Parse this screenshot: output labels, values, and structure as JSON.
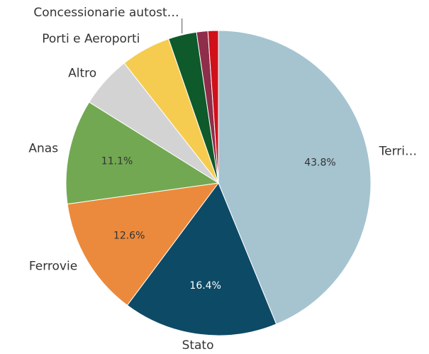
{
  "chart_data": {
    "type": "pie",
    "categories": [
      "Terri…",
      "Stato",
      "Ferrovie",
      "Anas",
      "Altro",
      "Porti e Aeroporti",
      "Concessionarie autost…",
      null,
      null
    ],
    "values": [
      43.8,
      16.4,
      12.6,
      11.1,
      5.5,
      5.3,
      3.0,
      1.2,
      1.1
    ],
    "value_labels": [
      "43.8%",
      "16.4%",
      "12.6%",
      "11.1%",
      null,
      null,
      null,
      null,
      null
    ],
    "colors": [
      "#a5c4d0",
      "#0d4a66",
      "#eb8a3c",
      "#72a852",
      "#d3d3d3",
      "#f6cc50",
      "#0e5a2a",
      "#8e2e4b",
      "#d0101a"
    ]
  }
}
